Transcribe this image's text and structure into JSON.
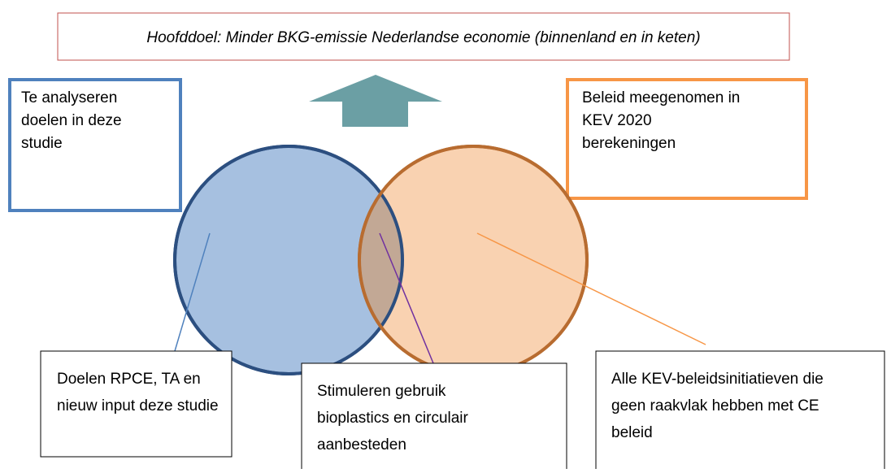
{
  "header": {
    "title": "Hoofddoel: Minder BKG-emissie Nederlandse economie (binnenland en in keten)"
  },
  "boxes": [
    {
      "label": [
        "Te analyseren",
        "doelen in deze",
        "studie"
      ]
    },
    {
      "label": [
        "Beleid meegenomen in",
        "KEV 2020",
        "berekeningen"
      ]
    },
    {
      "label": [
        "Doelen RPCE, TA en",
        "nieuw input deze studie"
      ]
    },
    {
      "label": [
        "Stimuleren gebruik",
        "bioplastics en circulair",
        "aanbesteden"
      ]
    },
    {
      "label": [
        "Alle KEV-beleidsinitiatieven die",
        "geen raakvlak hebben met CE",
        "beleid"
      ]
    }
  ]
}
